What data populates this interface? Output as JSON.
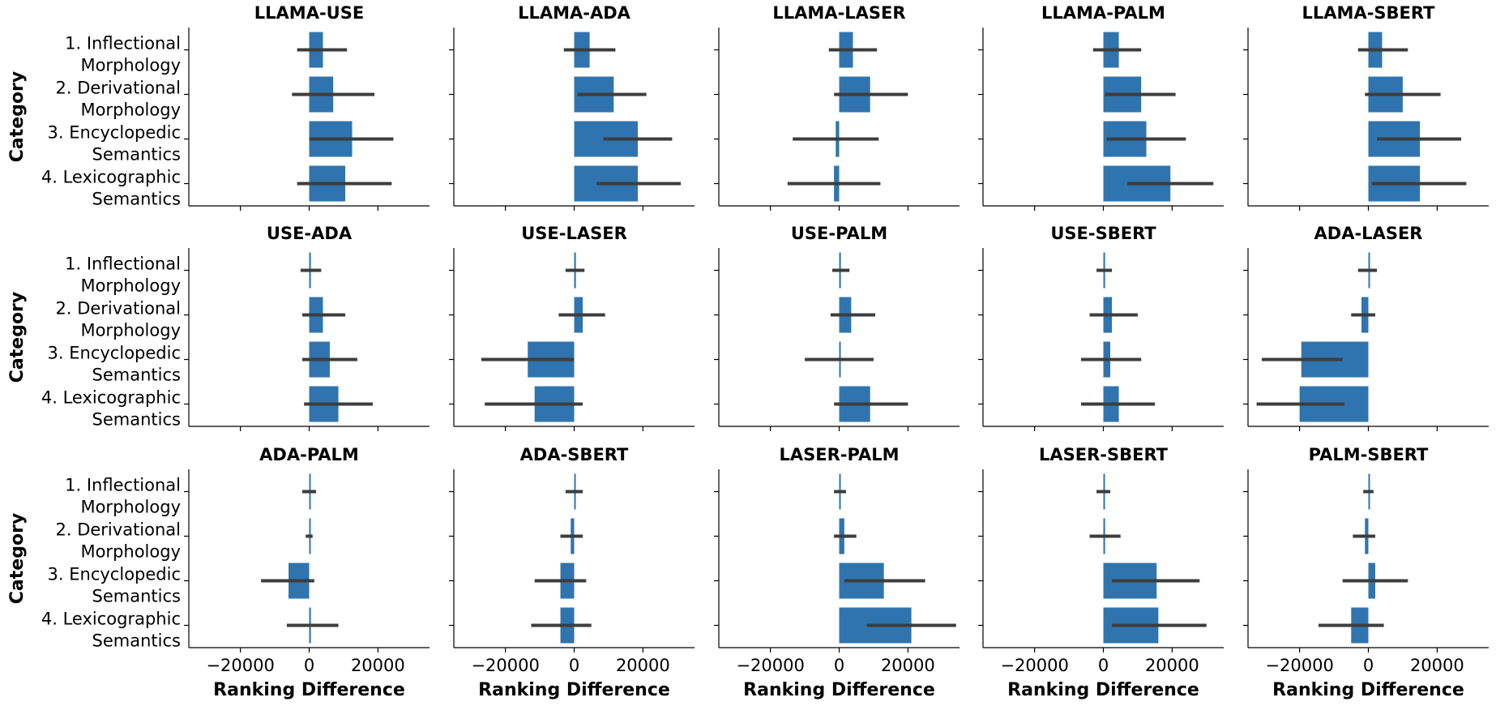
{
  "chart_data": {
    "type": "bar",
    "orientation": "horizontal",
    "layout": "grid 3 rows x 5 columns, shared x and y axes",
    "categories": [
      "1. Inflectional\nMorphology",
      "2. Derivational\nMorphology",
      "3. Encyclopedic\nSemantics",
      "4. Lexicographic\nSemantics"
    ],
    "xlabel": "Ranking Difference",
    "ylabel": "Category",
    "xlim": [
      -35000,
      35000
    ],
    "xticks": [
      -20000,
      0,
      20000
    ],
    "xtick_labels": [
      "−20000",
      "0",
      "20000"
    ],
    "bar_color": "#2f74ae",
    "errorbar_color": "#3d3d3d",
    "grid": false,
    "legend": "none",
    "panels": [
      {
        "title": "LLAMA-USE",
        "values": [
          4000,
          7000,
          12500,
          10500
        ],
        "err_low": [
          -3500,
          -5000,
          0,
          -3500
        ],
        "err_high": [
          11000,
          19000,
          24500,
          24000
        ]
      },
      {
        "title": "LLAMA-ADA",
        "values": [
          4500,
          11500,
          18500,
          18500
        ],
        "err_low": [
          -3000,
          1000,
          8500,
          6500
        ],
        "err_high": [
          12000,
          21000,
          28500,
          31000
        ]
      },
      {
        "title": "LLAMA-LASER",
        "values": [
          4000,
          9000,
          -1000,
          -1500
        ],
        "err_low": [
          -3000,
          -1500,
          -13500,
          -15000
        ],
        "err_high": [
          11000,
          20000,
          11500,
          12000
        ]
      },
      {
        "title": "LLAMA-PALM",
        "values": [
          4500,
          11000,
          12500,
          19500
        ],
        "err_low": [
          -3000,
          500,
          1000,
          7000
        ],
        "err_high": [
          11000,
          21000,
          24000,
          32000
        ]
      },
      {
        "title": "LLAMA-SBERT",
        "values": [
          4000,
          10000,
          15000,
          15000
        ],
        "err_low": [
          -3000,
          -1000,
          2500,
          1000
        ],
        "err_high": [
          11500,
          21000,
          27000,
          28500
        ]
      },
      {
        "title": "USE-ADA",
        "values": [
          500,
          4000,
          6000,
          8500
        ],
        "err_low": [
          -2500,
          -2000,
          -2000,
          -1500
        ],
        "err_high": [
          3500,
          10500,
          14000,
          18500
        ]
      },
      {
        "title": "USE-LASER",
        "values": [
          500,
          2500,
          -13500,
          -11500
        ],
        "err_low": [
          -2500,
          -4500,
          -27000,
          -26000
        ],
        "err_high": [
          3000,
          9000,
          0,
          2500
        ]
      },
      {
        "title": "USE-PALM",
        "values": [
          500,
          3500,
          0,
          9000
        ],
        "err_low": [
          -2000,
          -2500,
          -10000,
          -1500
        ],
        "err_high": [
          3000,
          10500,
          10000,
          20000
        ]
      },
      {
        "title": "USE-SBERT",
        "values": [
          500,
          2500,
          2000,
          4500
        ],
        "err_low": [
          -2000,
          -4000,
          -6500,
          -6500
        ],
        "err_high": [
          2500,
          10000,
          11000,
          15000
        ]
      },
      {
        "title": "ADA-LASER",
        "values": [
          0,
          -2000,
          -19500,
          -20000
        ],
        "err_low": [
          -3000,
          -5000,
          -31000,
          -32500
        ],
        "err_high": [
          2500,
          2000,
          -7500,
          -7000
        ]
      },
      {
        "title": "ADA-PALM",
        "values": [
          0,
          0,
          -6000,
          500
        ],
        "err_low": [
          -2000,
          -1000,
          -14000,
          -6500
        ],
        "err_high": [
          2000,
          1000,
          1500,
          8500
        ]
      },
      {
        "title": "ADA-SBERT",
        "values": [
          0,
          -1000,
          -4000,
          -4000
        ],
        "err_low": [
          -2500,
          -4000,
          -11500,
          -12500
        ],
        "err_high": [
          2500,
          2500,
          3500,
          5000
        ]
      },
      {
        "title": "LASER-PALM",
        "values": [
          0,
          1500,
          13000,
          21000
        ],
        "err_low": [
          -1500,
          -1500,
          1500,
          8000
        ],
        "err_high": [
          2000,
          5000,
          25000,
          34000
        ]
      },
      {
        "title": "LASER-SBERT",
        "values": [
          0,
          500,
          15500,
          16000
        ],
        "err_low": [
          -2000,
          -4000,
          2500,
          2500
        ],
        "err_high": [
          2000,
          5000,
          28000,
          30000
        ]
      },
      {
        "title": "PALM-SBERT",
        "values": [
          0,
          -1000,
          2000,
          -5000
        ],
        "err_low": [
          -1500,
          -4500,
          -7500,
          -14500
        ],
        "err_high": [
          1500,
          2000,
          11500,
          4500
        ]
      }
    ]
  }
}
